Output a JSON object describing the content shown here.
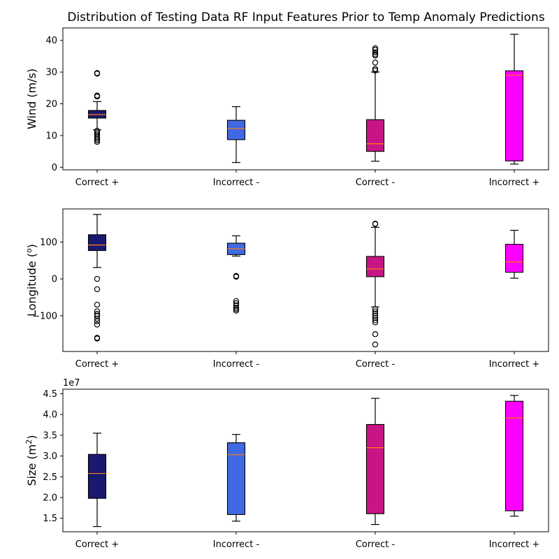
{
  "title": "Distribution of Testing Data RF Input Features Prior to Temp Anomaly Predictions",
  "categories": [
    "Correct +",
    "Incorrect -",
    "Correct -",
    "Incorrect +"
  ],
  "colors": [
    "#191970",
    "#4169e1",
    "#c71585",
    "#ff00ff"
  ],
  "median_color": "#ff7f0e",
  "chart_data": [
    {
      "type": "box",
      "ylabel": "Wind (m/s)",
      "ylabel_base": "Wind (m/s)",
      "ylabel_sup": "",
      "ylabel_tail": "",
      "ylim": [
        -0.8,
        43.9
      ],
      "yticks": [
        0,
        10,
        20,
        30,
        40
      ],
      "ytick_labels": [
        "0",
        "10",
        "20",
        "30",
        "40"
      ],
      "offset_text": "",
      "boxes": [
        {
          "category": "Correct +",
          "whisker_low": 11.8,
          "q1": 15.5,
          "median": 16.6,
          "q3": 17.9,
          "whisker_high": 20.7,
          "fliers": [
            29.5,
            29.7,
            22.3,
            22.6,
            11.5,
            11.0,
            10.5,
            10.0,
            9.5,
            9.0,
            8.5,
            8.0
          ]
        },
        {
          "category": "Incorrect -",
          "whisker_low": 1.5,
          "q1": 8.7,
          "median": 12.2,
          "q3": 14.8,
          "whisker_high": 19.1,
          "fliers": []
        },
        {
          "category": "Correct -",
          "whisker_low": 1.9,
          "q1": 5.0,
          "median": 7.4,
          "q3": 15.0,
          "whisker_high": 30.0,
          "fliers": [
            30.5,
            31.0,
            33.0,
            35.2,
            35.6,
            36.2,
            37.0,
            37.5
          ]
        },
        {
          "category": "Incorrect +",
          "whisker_low": 1.0,
          "q1": 2.0,
          "median": 29.0,
          "q3": 30.4,
          "whisker_high": 41.9,
          "fliers": []
        }
      ]
    },
    {
      "type": "box",
      "ylabel": "Longitude (º)",
      "ylabel_base": "Longitude (",
      "ylabel_sup": "o",
      "ylabel_tail": ")",
      "ylim": [
        -197,
        190
      ],
      "yticks": [
        -100,
        0,
        100
      ],
      "ytick_labels": [
        "−100",
        "0",
        "100"
      ],
      "offset_text": "",
      "boxes": [
        {
          "category": "Correct +",
          "whisker_low": 31,
          "q1": 77,
          "median": 92,
          "q3": 120,
          "whisker_high": 175,
          "fliers": [
            0,
            -28,
            -70,
            -88,
            -95,
            -100,
            -108,
            -115,
            -124,
            -160,
            -162
          ]
        },
        {
          "category": "Incorrect -",
          "whisker_low": 62,
          "q1": 66,
          "median": 82,
          "q3": 97,
          "whisker_high": 117,
          "fliers": [
            8,
            6,
            -60,
            -66,
            -72,
            -78,
            -82,
            -86
          ]
        },
        {
          "category": "Correct -",
          "whisker_low": -76,
          "q1": 6,
          "median": 27,
          "q3": 61,
          "whisker_high": 140,
          "fliers": [
            150,
            149,
            -82,
            -88,
            -94,
            -100,
            -106,
            -112,
            -118,
            -150,
            -178
          ]
        },
        {
          "category": "Incorrect +",
          "whisker_low": 2,
          "q1": 18,
          "median": 46,
          "q3": 94,
          "whisker_high": 132,
          "fliers": []
        }
      ]
    },
    {
      "type": "box",
      "ylabel": "Size (m²)",
      "ylabel_base": "Size (m",
      "ylabel_sup": "2",
      "ylabel_tail": ")",
      "ylim": [
        11750000,
        46100000
      ],
      "yticks": [
        15000000,
        20000000,
        25000000,
        30000000,
        35000000,
        40000000,
        45000000
      ],
      "ytick_labels": [
        "1.5",
        "2.0",
        "2.5",
        "3.0",
        "3.5",
        "4.0",
        "4.5"
      ],
      "offset_text": "1e7",
      "boxes": [
        {
          "category": "Correct +",
          "whisker_low": 13000000,
          "q1": 19800000,
          "median": 25800000,
          "q3": 30400000,
          "whisker_high": 35500000,
          "fliers": []
        },
        {
          "category": "Incorrect -",
          "whisker_low": 14300000,
          "q1": 15900000,
          "median": 30300000,
          "q3": 33200000,
          "whisker_high": 35200000,
          "fliers": []
        },
        {
          "category": "Correct -",
          "whisker_low": 13500000,
          "q1": 16100000,
          "median": 32000000,
          "q3": 37600000,
          "whisker_high": 43900000,
          "fliers": []
        },
        {
          "category": "Incorrect +",
          "whisker_low": 15500000,
          "q1": 16800000,
          "median": 39200000,
          "q3": 43200000,
          "whisker_high": 44600000,
          "fliers": []
        }
      ]
    }
  ]
}
